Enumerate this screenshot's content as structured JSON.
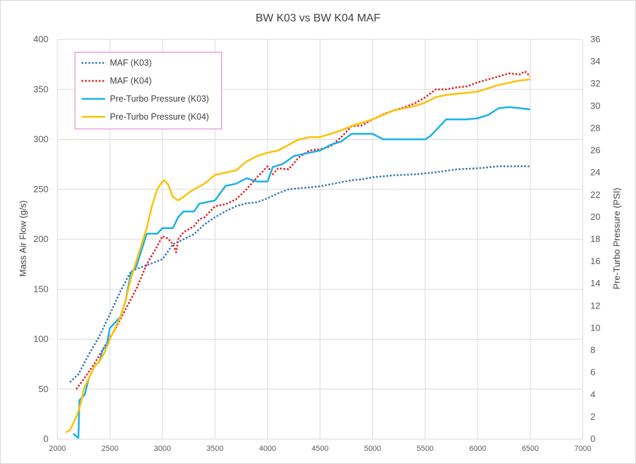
{
  "chart_data": {
    "type": "line",
    "title": "BW K03 vs BW K04 MAF",
    "ylabel_left": "Mass Air Flow (g/s)",
    "ylabel_right": "Pre-Turbo Pressure (PSI)",
    "xlim": [
      2000,
      7000
    ],
    "ylim_left": [
      0,
      400
    ],
    "ylim_right": [
      0,
      36
    ],
    "x_ticks": [
      "2000",
      "2500",
      "3000",
      "3500",
      "4000",
      "4500",
      "5000",
      "5500",
      "6000",
      "6500",
      "7000"
    ],
    "y_left_ticks": [
      "0",
      "50",
      "100",
      "150",
      "200",
      "250",
      "300",
      "350",
      "400"
    ],
    "y_right_ticks": [
      "0",
      "2",
      "4",
      "6",
      "8",
      "10",
      "12",
      "14",
      "16",
      "18",
      "20",
      "22",
      "24",
      "26",
      "28",
      "30",
      "32",
      "34",
      "36"
    ],
    "grid": true,
    "legend_position": "top-left",
    "series": [
      {
        "name": "MAF (K03)",
        "axis": "left",
        "style": "dotted",
        "color": "#2e75b6",
        "points": [
          [
            2120,
            57
          ],
          [
            2200,
            65
          ],
          [
            2300,
            85
          ],
          [
            2400,
            103
          ],
          [
            2500,
            125
          ],
          [
            2600,
            148
          ],
          [
            2700,
            168
          ],
          [
            2800,
            172
          ],
          [
            2900,
            176
          ],
          [
            3000,
            180
          ],
          [
            3100,
            195
          ],
          [
            3200,
            200
          ],
          [
            3300,
            205
          ],
          [
            3400,
            215
          ],
          [
            3500,
            222
          ],
          [
            3600,
            228
          ],
          [
            3700,
            233
          ],
          [
            3800,
            236
          ],
          [
            3900,
            237
          ],
          [
            4000,
            241
          ],
          [
            4100,
            246
          ],
          [
            4200,
            250
          ],
          [
            4300,
            251
          ],
          [
            4400,
            252
          ],
          [
            4500,
            253
          ],
          [
            4600,
            255
          ],
          [
            4700,
            257
          ],
          [
            4800,
            259
          ],
          [
            4900,
            260
          ],
          [
            5000,
            262
          ],
          [
            5200,
            264
          ],
          [
            5400,
            265
          ],
          [
            5600,
            267
          ],
          [
            5800,
            270
          ],
          [
            6000,
            271
          ],
          [
            6200,
            273
          ],
          [
            6400,
            273
          ],
          [
            6500,
            273
          ]
        ]
      },
      {
        "name": "MAF (K04)",
        "axis": "left",
        "style": "dotted",
        "color": "#e31a1c",
        "points": [
          [
            2180,
            50
          ],
          [
            2250,
            60
          ],
          [
            2350,
            75
          ],
          [
            2450,
            93
          ],
          [
            2550,
            110
          ],
          [
            2650,
            130
          ],
          [
            2750,
            150
          ],
          [
            2850,
            175
          ],
          [
            2950,
            193
          ],
          [
            3000,
            203
          ],
          [
            3050,
            201
          ],
          [
            3100,
            195
          ],
          [
            3130,
            187
          ],
          [
            3150,
            200
          ],
          [
            3200,
            207
          ],
          [
            3300,
            213
          ],
          [
            3350,
            220
          ],
          [
            3400,
            222
          ],
          [
            3500,
            233
          ],
          [
            3600,
            235
          ],
          [
            3700,
            240
          ],
          [
            3800,
            250
          ],
          [
            3900,
            262
          ],
          [
            4000,
            273
          ],
          [
            4050,
            265
          ],
          [
            4100,
            271
          ],
          [
            4200,
            270
          ],
          [
            4300,
            282
          ],
          [
            4400,
            289
          ],
          [
            4500,
            290
          ],
          [
            4600,
            293
          ],
          [
            4700,
            302
          ],
          [
            4800,
            313
          ],
          [
            4900,
            314
          ],
          [
            5000,
            320
          ],
          [
            5100,
            325
          ],
          [
            5200,
            329
          ],
          [
            5300,
            332
          ],
          [
            5400,
            336
          ],
          [
            5500,
            342
          ],
          [
            5600,
            350
          ],
          [
            5700,
            350
          ],
          [
            5800,
            352
          ],
          [
            5900,
            353
          ],
          [
            6000,
            357
          ],
          [
            6100,
            360
          ],
          [
            6200,
            363
          ],
          [
            6300,
            366
          ],
          [
            6400,
            365
          ],
          [
            6450,
            368
          ],
          [
            6500,
            363
          ]
        ]
      },
      {
        "name": "Pre-Turbo Pressure (K03)",
        "axis": "right",
        "style": "solid",
        "color": "#19b0e8",
        "points": [
          [
            2150,
            0.5
          ],
          [
            2200,
            0.1
          ],
          [
            2210,
            3.5
          ],
          [
            2260,
            4.0
          ],
          [
            2300,
            5.5
          ],
          [
            2350,
            6.5
          ],
          [
            2400,
            7.0
          ],
          [
            2430,
            8.0
          ],
          [
            2470,
            8.5
          ],
          [
            2500,
            10.0
          ],
          [
            2550,
            10.5
          ],
          [
            2600,
            11.0
          ],
          [
            2650,
            12.5
          ],
          [
            2700,
            15.0
          ],
          [
            2750,
            15.5
          ],
          [
            2800,
            17.0
          ],
          [
            2850,
            18.5
          ],
          [
            2950,
            18.5
          ],
          [
            3000,
            19.0
          ],
          [
            3100,
            19.0
          ],
          [
            3150,
            20.0
          ],
          [
            3200,
            20.5
          ],
          [
            3300,
            20.5
          ],
          [
            3350,
            21.2
          ],
          [
            3500,
            21.5
          ],
          [
            3600,
            22.8
          ],
          [
            3700,
            23.0
          ],
          [
            3800,
            23.5
          ],
          [
            3900,
            23.2
          ],
          [
            4000,
            23.2
          ],
          [
            4050,
            24.5
          ],
          [
            4150,
            24.8
          ],
          [
            4250,
            25.5
          ],
          [
            4400,
            25.8
          ],
          [
            4500,
            26.0
          ],
          [
            4600,
            26.5
          ],
          [
            4700,
            26.8
          ],
          [
            4800,
            27.5
          ],
          [
            5000,
            27.5
          ],
          [
            5100,
            27.0
          ],
          [
            5200,
            27.0
          ],
          [
            5500,
            27.0
          ],
          [
            5550,
            27.3
          ],
          [
            5600,
            27.8
          ],
          [
            5700,
            28.8
          ],
          [
            5800,
            28.8
          ],
          [
            5900,
            28.8
          ],
          [
            6000,
            28.9
          ],
          [
            6100,
            29.2
          ],
          [
            6200,
            29.8
          ],
          [
            6300,
            29.9
          ],
          [
            6400,
            29.8
          ],
          [
            6500,
            29.7
          ]
        ]
      },
      {
        "name": "Pre-Turbo Pressure (K04)",
        "axis": "right",
        "style": "solid",
        "color": "#ffc000",
        "points": [
          [
            2080,
            0.6
          ],
          [
            2120,
            0.8
          ],
          [
            2150,
            1.4
          ],
          [
            2180,
            2.0
          ],
          [
            2200,
            2.5
          ],
          [
            2230,
            3.5
          ],
          [
            2250,
            4.5
          ],
          [
            2300,
            5.5
          ],
          [
            2350,
            6.5
          ],
          [
            2400,
            7.0
          ],
          [
            2450,
            7.8
          ],
          [
            2500,
            9.0
          ],
          [
            2600,
            11.0
          ],
          [
            2650,
            12.5
          ],
          [
            2700,
            14.5
          ],
          [
            2750,
            16.0
          ],
          [
            2800,
            17.5
          ],
          [
            2850,
            19.0
          ],
          [
            2900,
            21.0
          ],
          [
            2950,
            22.5
          ],
          [
            3000,
            23.2
          ],
          [
            3020,
            23.3
          ],
          [
            3050,
            23.0
          ],
          [
            3100,
            21.8
          ],
          [
            3150,
            21.5
          ],
          [
            3200,
            21.8
          ],
          [
            3250,
            22.2
          ],
          [
            3300,
            22.5
          ],
          [
            3400,
            23.0
          ],
          [
            3500,
            23.8
          ],
          [
            3600,
            24.0
          ],
          [
            3700,
            24.2
          ],
          [
            3800,
            25.0
          ],
          [
            3900,
            25.5
          ],
          [
            4000,
            25.8
          ],
          [
            4100,
            26.0
          ],
          [
            4200,
            26.5
          ],
          [
            4300,
            27.0
          ],
          [
            4400,
            27.2
          ],
          [
            4500,
            27.2
          ],
          [
            4600,
            27.5
          ],
          [
            4700,
            27.8
          ],
          [
            4800,
            28.2
          ],
          [
            4900,
            28.5
          ],
          [
            5000,
            28.8
          ],
          [
            5100,
            29.2
          ],
          [
            5200,
            29.6
          ],
          [
            5300,
            29.8
          ],
          [
            5400,
            30.0
          ],
          [
            5500,
            30.3
          ],
          [
            5600,
            30.8
          ],
          [
            5700,
            31.0
          ],
          [
            5800,
            31.1
          ],
          [
            5900,
            31.2
          ],
          [
            6000,
            31.3
          ],
          [
            6100,
            31.6
          ],
          [
            6200,
            31.9
          ],
          [
            6300,
            32.1
          ],
          [
            6400,
            32.3
          ],
          [
            6500,
            32.4
          ]
        ]
      }
    ]
  }
}
